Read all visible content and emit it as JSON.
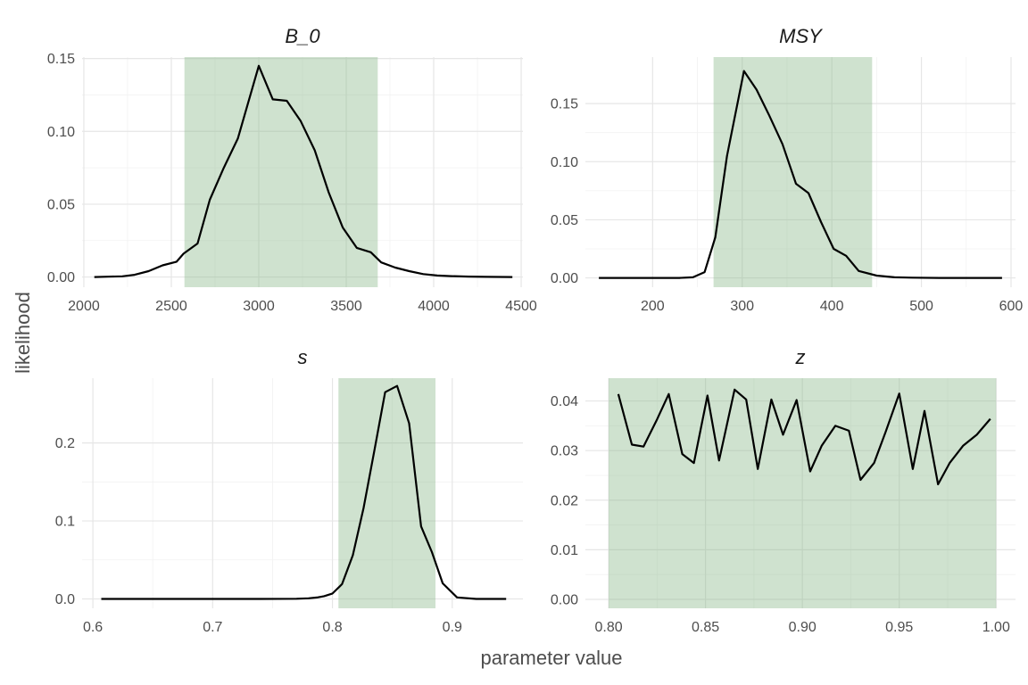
{
  "chart_data": {
    "type": "line",
    "xlabel": "parameter value",
    "ylabel": "likelihood",
    "grid": true,
    "colors": {
      "line": "#000000",
      "band": "#cfe1cf",
      "grid": "#e6e6e6"
    },
    "facets": [
      {
        "title": "B_0",
        "xlim": [
          1990,
          4510
        ],
        "ylim": [
          -0.007,
          0.151
        ],
        "x_ticks": [
          2000,
          2500,
          3000,
          3500,
          4000,
          4500
        ],
        "x_tick_labels": [
          "2000",
          "2500",
          "3000",
          "3500",
          "4000",
          "4500"
        ],
        "y_ticks": [
          0,
          0.05,
          0.1,
          0.15
        ],
        "y_tick_labels": [
          "0.00",
          "0.05",
          "0.10",
          "0.15"
        ],
        "band": [
          2575,
          3680
        ],
        "x": [
          2060,
          2140,
          2220,
          2290,
          2370,
          2450,
          2530,
          2570,
          2650,
          2720,
          2800,
          2880,
          3000,
          3080,
          3160,
          3240,
          3320,
          3400,
          3480,
          3560,
          3640,
          3700,
          3780,
          3860,
          3940,
          4020,
          4100,
          4200,
          4300,
          4450
        ],
        "y": [
          0.0,
          0.0002,
          0.0005,
          0.0015,
          0.004,
          0.008,
          0.0105,
          0.016,
          0.023,
          0.053,
          0.075,
          0.095,
          0.145,
          0.122,
          0.121,
          0.107,
          0.087,
          0.058,
          0.034,
          0.02,
          0.017,
          0.01,
          0.0065,
          0.004,
          0.002,
          0.001,
          0.0006,
          0.0003,
          0.0001,
          0.0
        ]
      },
      {
        "title": "MSY",
        "xlim": [
          125,
          605
        ],
        "ylim": [
          -0.008,
          0.19
        ],
        "x_ticks": [
          200,
          300,
          400,
          500,
          600
        ],
        "x_tick_labels": [
          "200",
          "300",
          "400",
          "500",
          "600"
        ],
        "y_ticks": [
          0,
          0.05,
          0.1,
          0.15
        ],
        "y_tick_labels": [
          "0.00",
          "0.05",
          "0.10",
          "0.15"
        ],
        "band": [
          268,
          445
        ],
        "x": [
          140,
          170,
          200,
          230,
          245,
          258,
          270,
          283,
          302,
          316,
          330,
          345,
          360,
          374,
          388,
          402,
          416,
          430,
          450,
          470,
          490,
          520,
          590
        ],
        "y": [
          0.0,
          0.0,
          0.0,
          0.0,
          0.0005,
          0.005,
          0.035,
          0.105,
          0.178,
          0.162,
          0.14,
          0.115,
          0.081,
          0.073,
          0.048,
          0.025,
          0.019,
          0.006,
          0.002,
          0.0005,
          0.0002,
          0.0,
          0.0
        ]
      },
      {
        "title": "s",
        "xlim": [
          0.591,
          0.959
        ],
        "ylim": [
          -0.012,
          0.283
        ],
        "x_ticks": [
          0.6,
          0.7,
          0.8,
          0.9
        ],
        "x_tick_labels": [
          "0.6",
          "0.7",
          "0.8",
          "0.9"
        ],
        "y_ticks": [
          0,
          0.1,
          0.2
        ],
        "y_tick_labels": [
          "0.0",
          "0.1",
          "0.2"
        ],
        "band": [
          0.805,
          0.886
        ],
        "x": [
          0.607,
          0.65,
          0.7,
          0.74,
          0.77,
          0.78,
          0.787,
          0.793,
          0.8,
          0.808,
          0.817,
          0.826,
          0.835,
          0.844,
          0.854,
          0.864,
          0.874,
          0.883,
          0.892,
          0.904,
          0.92,
          0.945
        ],
        "y": [
          0.0,
          0.0,
          0.0,
          0.0,
          0.0002,
          0.0008,
          0.0018,
          0.0035,
          0.007,
          0.019,
          0.056,
          0.117,
          0.19,
          0.265,
          0.273,
          0.225,
          0.093,
          0.06,
          0.02,
          0.002,
          0.0,
          0.0
        ]
      },
      {
        "title": "z",
        "xlim": [
          0.788,
          1.01
        ],
        "ylim": [
          -0.0018,
          0.0446
        ],
        "x_ticks": [
          0.8,
          0.85,
          0.9,
          0.95,
          1.0
        ],
        "x_tick_labels": [
          "0.80",
          "0.85",
          "0.90",
          "0.95",
          "1.00"
        ],
        "y_ticks": [
          0,
          0.01,
          0.02,
          0.03,
          0.04
        ],
        "y_tick_labels": [
          "0.00",
          "0.01",
          "0.02",
          "0.03",
          "0.04"
        ],
        "band": [
          0.8,
          1.0
        ],
        "x": [
          0.805,
          0.812,
          0.818,
          0.825,
          0.831,
          0.838,
          0.844,
          0.851,
          0.857,
          0.865,
          0.871,
          0.877,
          0.884,
          0.89,
          0.897,
          0.904,
          0.91,
          0.917,
          0.924,
          0.93,
          0.937,
          0.943,
          0.95,
          0.957,
          0.963,
          0.97,
          0.976,
          0.983,
          0.99,
          0.997
        ],
        "y": [
          0.0414,
          0.0312,
          0.0308,
          0.0363,
          0.0414,
          0.0293,
          0.0275,
          0.0411,
          0.028,
          0.0423,
          0.0403,
          0.0263,
          0.0403,
          0.0332,
          0.0402,
          0.0258,
          0.031,
          0.035,
          0.034,
          0.0241,
          0.0275,
          0.0338,
          0.0415,
          0.0263,
          0.038,
          0.0232,
          0.0275,
          0.031,
          0.0332,
          0.0364
        ]
      }
    ]
  }
}
